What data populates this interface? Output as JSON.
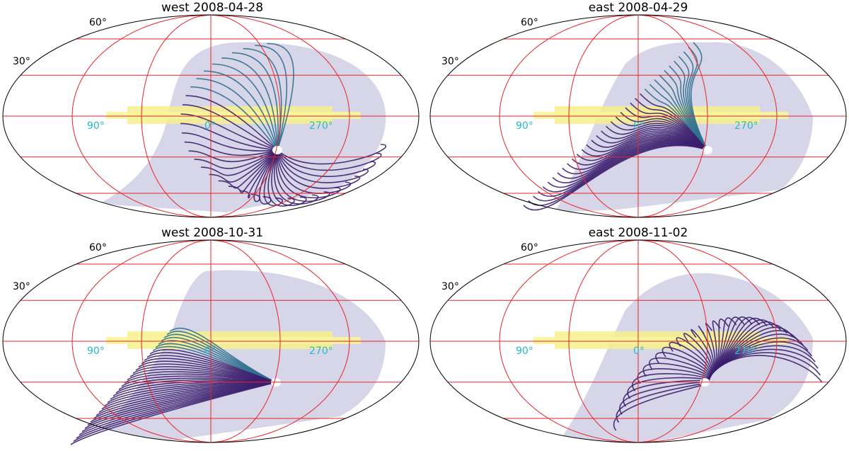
{
  "panels": [
    {
      "title": "west  2008-04-28",
      "lat_labels": [
        "60$^\\circ$",
        "30$^\\circ$"
      ],
      "lat_text": [
        "60°",
        "30°"
      ],
      "lon_labels": [
        "90°",
        "0°",
        "270°"
      ],
      "sky_side": "west-left",
      "tracks": "west-top"
    },
    {
      "title": "east  2008-04-29",
      "lat_text": [
        "60°",
        "30°"
      ],
      "lon_labels": [
        "90°",
        "0°",
        "270°"
      ],
      "sky_side": "east",
      "tracks": "east-left"
    },
    {
      "title": "west  2008-10-31",
      "lat_text": [
        "60°",
        "30°"
      ],
      "lon_labels": [
        "90°",
        "0°",
        "270°"
      ],
      "sky_side": "west-right",
      "tracks": "west-bottom"
    },
    {
      "title": "east  2008-11-02",
      "lat_text": [
        "60°",
        "30°"
      ],
      "lon_labels": [
        "90°",
        "0°",
        "270°"
      ],
      "sky_side": "east-right",
      "tracks": "east-right"
    }
  ],
  "colors": {
    "grid": "#e8232a",
    "frame": "#000000",
    "sky_base": "#d7d6e8",
    "galactic_plane": "#f4f08c",
    "track_dark": "#3b1f6e",
    "track_mid": "#2e6f8e",
    "track_light": "#35b779",
    "lon_label": "#2ab7c9",
    "sun_marker": "#ffffff"
  }
}
